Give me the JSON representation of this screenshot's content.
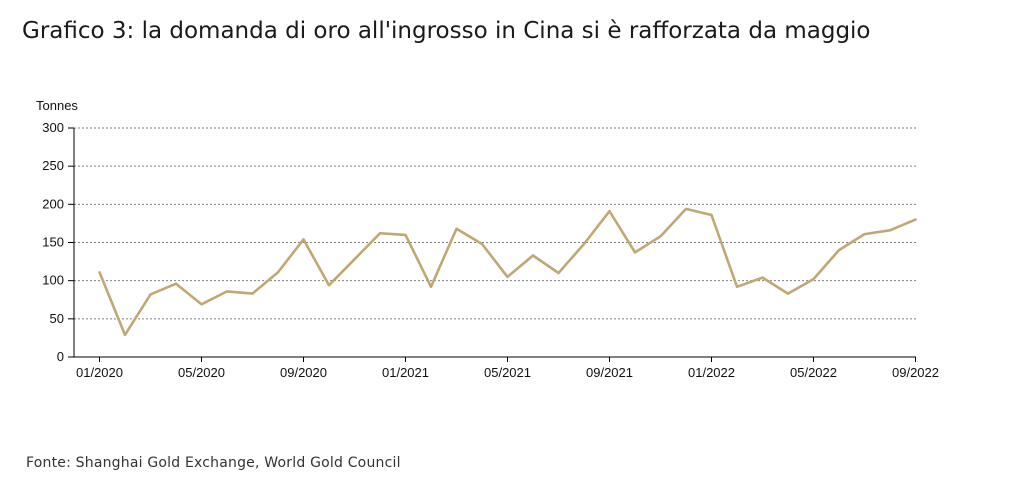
{
  "title": "Grafico 3: la domanda di oro all'ingrosso in Cina si è rafforzata da maggio",
  "source": "Fonte: Shanghai Gold Exchange, World Gold Council",
  "colors": {
    "line": "#BFA876",
    "grid": "#808080",
    "axis": "#000000",
    "text": "#111111"
  },
  "chart_data": {
    "type": "line",
    "ylabel": "Tonnes",
    "xlabel": "",
    "ylim": [
      0,
      300
    ],
    "y_ticks": [
      0,
      50,
      100,
      150,
      200,
      250,
      300
    ],
    "x_tick_labels": [
      "01/2020",
      "05/2020",
      "09/2020",
      "01/2021",
      "05/2021",
      "09/2021",
      "01/2022",
      "05/2022",
      "09/2022"
    ],
    "grid": "horizontal dashed",
    "x": [
      "01/2020",
      "02/2020",
      "03/2020",
      "04/2020",
      "05/2020",
      "06/2020",
      "07/2020",
      "08/2020",
      "09/2020",
      "10/2020",
      "11/2020",
      "12/2020",
      "01/2021",
      "02/2021",
      "03/2021",
      "04/2021",
      "05/2021",
      "06/2021",
      "07/2021",
      "08/2021",
      "09/2021",
      "10/2021",
      "11/2021",
      "12/2021",
      "01/2022",
      "02/2022",
      "03/2022",
      "04/2022",
      "05/2022",
      "06/2022",
      "07/2022",
      "08/2022",
      "09/2022"
    ],
    "series": [
      {
        "values": [
          111,
          29,
          82,
          96,
          69,
          86,
          83,
          111,
          154,
          94,
          128,
          162,
          160,
          92,
          168,
          148,
          105,
          133,
          110,
          148,
          191,
          137,
          158,
          194,
          186,
          92,
          104,
          83,
          102,
          140,
          161,
          166,
          180
        ]
      }
    ]
  }
}
